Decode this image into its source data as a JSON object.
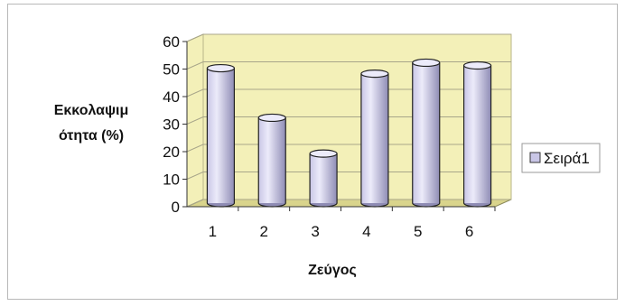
{
  "chart_data": {
    "type": "bar",
    "style": "3d-cylinder",
    "categories": [
      "1",
      "2",
      "3",
      "4",
      "5",
      "6"
    ],
    "series": [
      {
        "name": "Σειρά1",
        "values": [
          49,
          31,
          18,
          47,
          51,
          50
        ]
      }
    ],
    "title": "",
    "xlabel": "Ζεύγος",
    "ylabel_lines": [
      "Εκκολαψιμ",
      "ότητα (%)"
    ],
    "ylim": [
      0,
      60
    ],
    "yticks": [
      "0",
      "10",
      "20",
      "30",
      "40",
      "50",
      "60"
    ],
    "grid": true,
    "legend_position": "right",
    "colors": {
      "wall": "#f3f0b8",
      "floor": "#d9d48c",
      "bar_light": "#ecebfa",
      "bar_mid": "#c9c6e6",
      "bar_dark": "#8f8cb5",
      "gridline": "#a8a68a"
    }
  }
}
